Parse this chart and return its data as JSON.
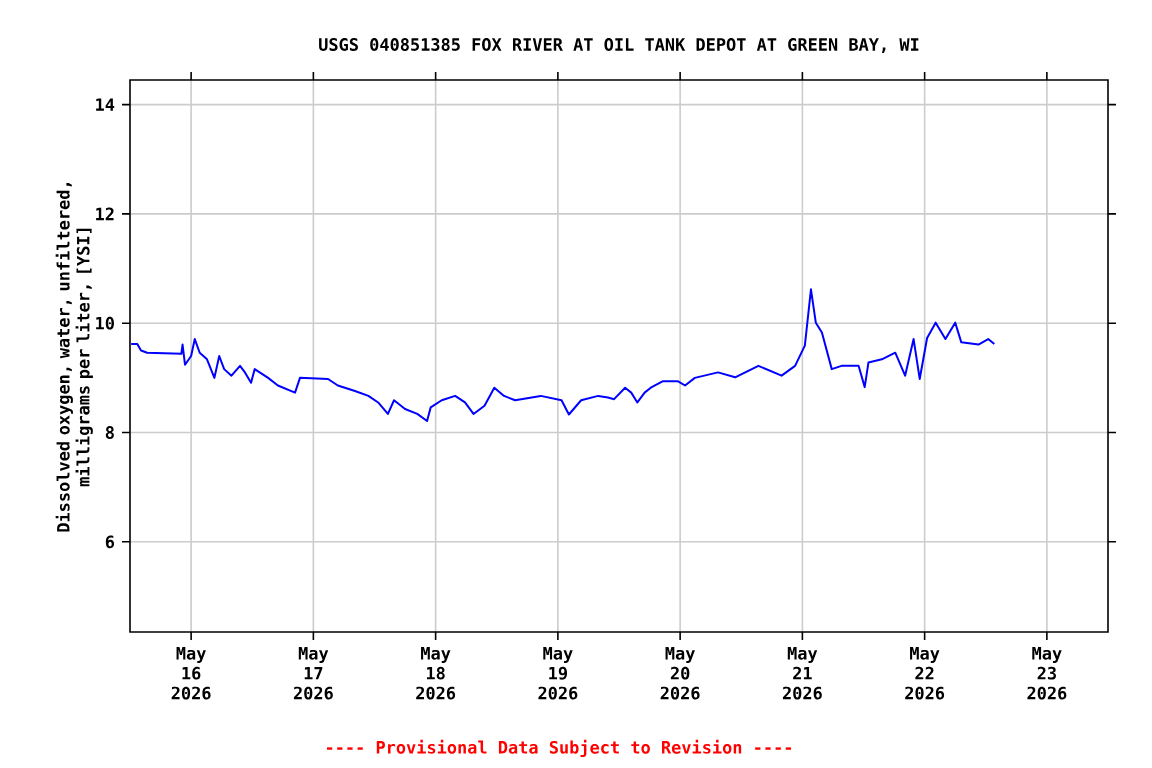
{
  "chart_data": {
    "type": "line",
    "title": "USGS 040851385 FOX RIVER AT OIL TANK DEPOT AT GREEN BAY, WI",
    "ylabel": "Dissolved oxygen, water, unfiltered, milligrams per liter, [YSI]",
    "annotations": [
      "---- Provisional Data Subject to Revision ----"
    ],
    "x": [
      "2026-05-15T12:14",
      "2026-05-15T13:26",
      "2026-05-15T14:10",
      "2026-05-15T15:22",
      "2026-05-15T22:05",
      "2026-05-15T22:19",
      "2026-05-15T22:48",
      "2026-05-16T00:00",
      "2026-05-16T00:43",
      "2026-05-16T01:41",
      "2026-05-16T03:07",
      "2026-05-16T04:34",
      "2026-05-16T05:31",
      "2026-05-16T06:29",
      "2026-05-16T07:55",
      "2026-05-16T09:36",
      "2026-05-16T10:34",
      "2026-05-16T11:46",
      "2026-05-16T12:29",
      "2026-05-16T15:07",
      "2026-05-16T17:02",
      "2026-05-16T20:24",
      "2026-05-16T21:22",
      "2026-05-17T02:53",
      "2026-05-17T04:48",
      "2026-05-17T08:10",
      "2026-05-17T10:48",
      "2026-05-17T12:43",
      "2026-05-17T14:38",
      "2026-05-17T15:50",
      "2026-05-17T18:00",
      "2026-05-17T20:24",
      "2026-05-17T22:19",
      "2026-05-17T23:02",
      "2026-05-18T01:12",
      "2026-05-18T03:50",
      "2026-05-18T05:46",
      "2026-05-18T07:26",
      "2026-05-18T09:36",
      "2026-05-18T11:31",
      "2026-05-18T13:26",
      "2026-05-18T15:36",
      "2026-05-18T20:38",
      "2026-05-19T00:43",
      "2026-05-19T02:10",
      "2026-05-19T04:34",
      "2026-05-19T07:55",
      "2026-05-19T09:50",
      "2026-05-19T11:02",
      "2026-05-19T13:12",
      "2026-05-19T14:24",
      "2026-05-19T15:36",
      "2026-05-19T17:02",
      "2026-05-19T18:14",
      "2026-05-19T20:38",
      "2026-05-19T23:31",
      "2026-05-20T00:58",
      "2026-05-20T02:53",
      "2026-05-20T07:26",
      "2026-05-20T10:48",
      "2026-05-20T15:22",
      "2026-05-20T19:55",
      "2026-05-20T22:34",
      "2026-05-21T00:29",
      "2026-05-21T01:41",
      "2026-05-21T02:38",
      "2026-05-21T03:50",
      "2026-05-21T05:46",
      "2026-05-21T07:41",
      "2026-05-21T11:02",
      "2026-05-21T12:14",
      "2026-05-21T12:58",
      "2026-05-21T15:36",
      "2026-05-21T18:14",
      "2026-05-21T20:10",
      "2026-05-21T21:50",
      "2026-05-21T23:02",
      "2026-05-22T00:29",
      "2026-05-22T02:10",
      "2026-05-22T04:05",
      "2026-05-22T06:00",
      "2026-05-22T07:12",
      "2026-05-22T10:34",
      "2026-05-22T12:29",
      "2026-05-22T13:41"
    ],
    "series": [
      {
        "color": "#0000ff",
        "values": [
          9.62,
          9.62,
          9.5,
          9.46,
          9.44,
          9.61,
          9.24,
          9.4,
          9.71,
          9.46,
          9.34,
          9.0,
          9.4,
          9.16,
          9.04,
          9.22,
          9.1,
          8.91,
          9.16,
          9.0,
          8.86,
          8.73,
          9.0,
          8.98,
          8.86,
          8.76,
          8.67,
          8.55,
          8.34,
          8.59,
          8.43,
          8.34,
          8.21,
          8.46,
          8.59,
          8.67,
          8.55,
          8.34,
          8.49,
          8.82,
          8.67,
          8.59,
          8.67,
          8.59,
          8.33,
          8.59,
          8.67,
          8.64,
          8.61,
          8.82,
          8.73,
          8.55,
          8.73,
          8.82,
          8.94,
          8.94,
          8.86,
          9.0,
          9.1,
          9.01,
          9.22,
          9.04,
          9.22,
          9.59,
          10.62,
          10.01,
          9.83,
          9.16,
          9.22,
          9.22,
          8.83,
          9.28,
          9.34,
          9.46,
          9.04,
          9.71,
          8.98,
          9.73,
          10.01,
          9.71,
          10.01,
          9.65,
          9.61,
          9.71,
          9.62
        ]
      }
    ],
    "xlim": [
      "2026-05-15T12:00",
      "2026-05-23T12:00"
    ],
    "xticks": [
      {
        "value": "2026-05-16",
        "label": "May 16 2026"
      },
      {
        "value": "2026-05-17",
        "label": "May 17 2026"
      },
      {
        "value": "2026-05-18",
        "label": "May 18 2026"
      },
      {
        "value": "2026-05-19",
        "label": "May 19 2026"
      },
      {
        "value": "2026-05-20",
        "label": "May 20 2026"
      },
      {
        "value": "2026-05-21",
        "label": "May 21 2026"
      },
      {
        "value": "2026-05-22",
        "label": "May 22 2026"
      },
      {
        "value": "2026-05-23",
        "label": "May 23 2026"
      }
    ],
    "ylim": [
      4.35,
      14.45
    ],
    "yticks": [
      6,
      8,
      10,
      12,
      14
    ],
    "grid": true,
    "line_style": "solid",
    "marker": "none"
  }
}
